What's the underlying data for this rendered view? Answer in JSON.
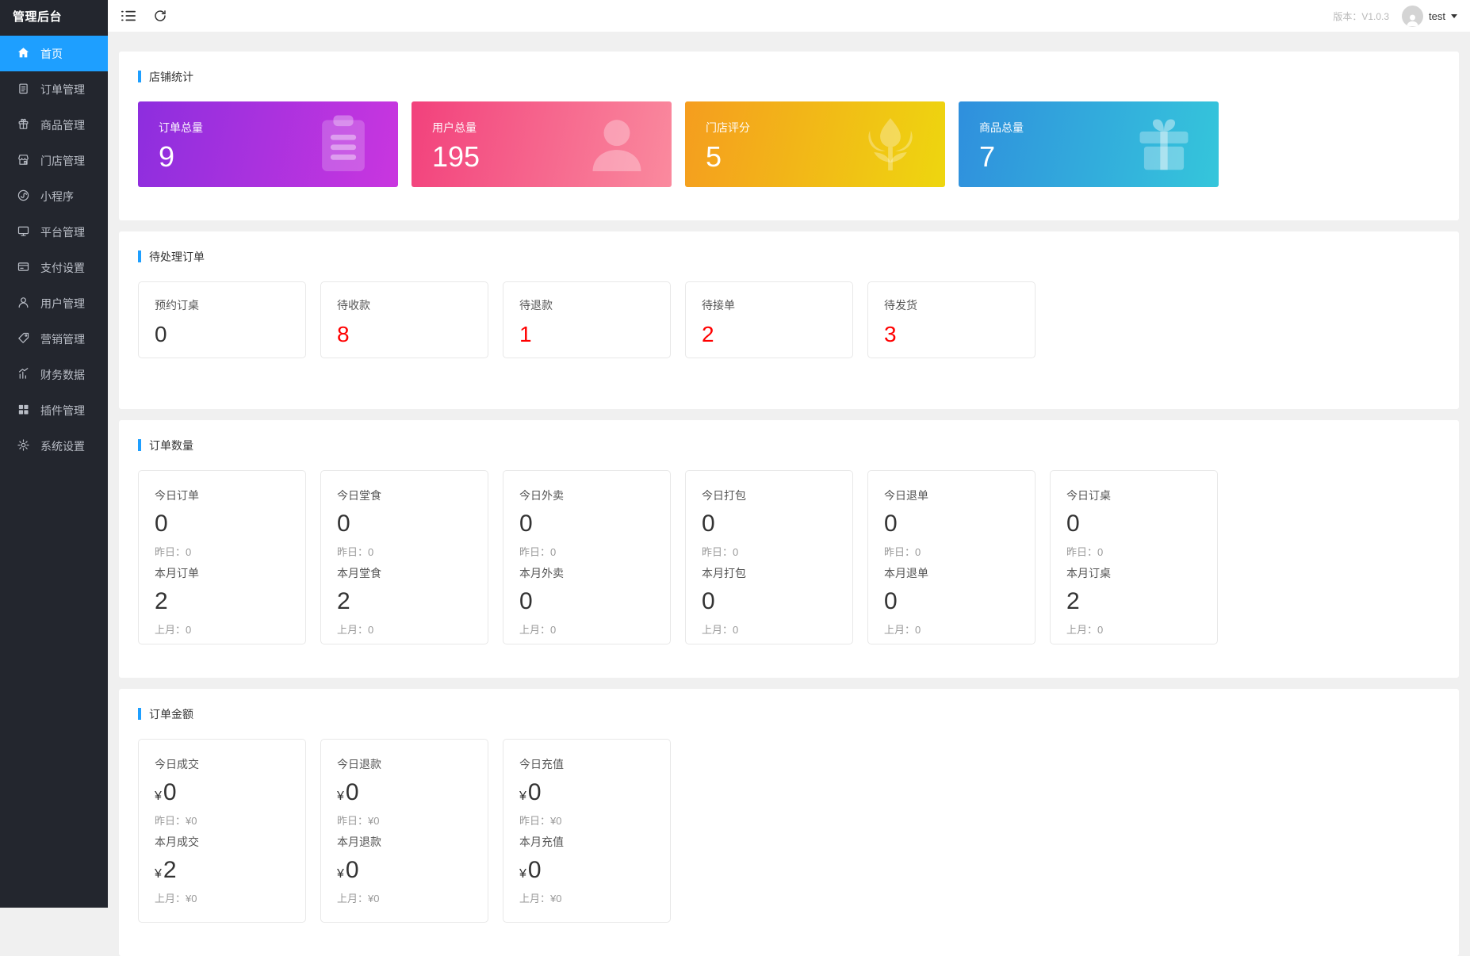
{
  "app": {
    "title": "管理后台"
  },
  "header": {
    "version_label": "版本：V1.0.3",
    "user": "test"
  },
  "sidebar": {
    "items": [
      {
        "id": "home",
        "label": "首页",
        "icon": "home-icon",
        "active": true
      },
      {
        "id": "orders",
        "label": "订单管理",
        "icon": "order-icon"
      },
      {
        "id": "products",
        "label": "商品管理",
        "icon": "goods-icon"
      },
      {
        "id": "stores",
        "label": "门店管理",
        "icon": "store-icon"
      },
      {
        "id": "miniprogram",
        "label": "小程序",
        "icon": "miniprogram-icon"
      },
      {
        "id": "platform",
        "label": "平台管理",
        "icon": "monitor-icon"
      },
      {
        "id": "payment",
        "label": "支付设置",
        "icon": "payment-icon"
      },
      {
        "id": "users",
        "label": "用户管理",
        "icon": "user-icon"
      },
      {
        "id": "marketing",
        "label": "营销管理",
        "icon": "tag-icon"
      },
      {
        "id": "finance",
        "label": "财务数据",
        "icon": "chart-icon"
      },
      {
        "id": "plugins",
        "label": "插件管理",
        "icon": "blocks-icon"
      },
      {
        "id": "settings",
        "label": "系统设置",
        "icon": "gear-icon"
      }
    ]
  },
  "sections": {
    "shop_stats": {
      "title": "店铺统计",
      "cards": [
        {
          "id": "total-orders",
          "label": "订单总量",
          "value": "9",
          "icon": "clipboard-icon",
          "gradient": [
            "#8d2ede",
            "#c936df"
          ]
        },
        {
          "id": "total-users",
          "label": "用户总量",
          "value": "195",
          "icon": "person-icon",
          "gradient": [
            "#f2417c",
            "#fa8a9e"
          ]
        },
        {
          "id": "store-rating",
          "label": "门店评分",
          "value": "5",
          "icon": "flower-icon",
          "gradient": [
            "#f59d1f",
            "#eed60f"
          ]
        },
        {
          "id": "total-products",
          "label": "商品总量",
          "value": "7",
          "icon": "gift-icon",
          "gradient": [
            "#2f8fdd",
            "#35c6db"
          ]
        }
      ]
    },
    "pending_orders": {
      "title": "待处理订单",
      "cards": [
        {
          "id": "reserved-tables",
          "label": "预约订桌",
          "value": "0",
          "value_color": "#333333"
        },
        {
          "id": "pending-payment",
          "label": "待收款",
          "value": "8",
          "value_color": "#ff0000"
        },
        {
          "id": "pending-refund",
          "label": "待退款",
          "value": "1",
          "value_color": "#ff0000"
        },
        {
          "id": "pending-accept",
          "label": "待接单",
          "value": "2",
          "value_color": "#ff0000"
        },
        {
          "id": "pending-ship",
          "label": "待发货",
          "value": "3",
          "value_color": "#ff0000"
        }
      ]
    },
    "order_counts": {
      "title": "订单数量",
      "cards": [
        {
          "id": "today-orders",
          "today_label": "今日订单",
          "today_value": "0",
          "yesterday": "昨日：0",
          "month_label": "本月订单",
          "month_value": "2",
          "last_month": "上月：0"
        },
        {
          "id": "today-dinein",
          "today_label": "今日堂食",
          "today_value": "0",
          "yesterday": "昨日：0",
          "month_label": "本月堂食",
          "month_value": "2",
          "last_month": "上月：0"
        },
        {
          "id": "today-takeout",
          "today_label": "今日外卖",
          "today_value": "0",
          "yesterday": "昨日：0",
          "month_label": "本月外卖",
          "month_value": "0",
          "last_month": "上月：0"
        },
        {
          "id": "today-packed",
          "today_label": "今日打包",
          "today_value": "0",
          "yesterday": "昨日：0",
          "month_label": "本月打包",
          "month_value": "0",
          "last_month": "上月：0"
        },
        {
          "id": "today-returns",
          "today_label": "今日退单",
          "today_value": "0",
          "yesterday": "昨日：0",
          "month_label": "本月退单",
          "month_value": "0",
          "last_month": "上月：0"
        },
        {
          "id": "today-tables",
          "today_label": "今日订桌",
          "today_value": "0",
          "yesterday": "昨日：0",
          "month_label": "本月订桌",
          "month_value": "2",
          "last_month": "上月：0"
        }
      ]
    },
    "order_amounts": {
      "title": "订单金额",
      "currency": "¥",
      "cards": [
        {
          "id": "today-sales",
          "today_label": "今日成交",
          "today_value": "0",
          "yesterday": "昨日：¥0",
          "month_label": "本月成交",
          "month_value": "2",
          "last_month": "上月：¥0"
        },
        {
          "id": "today-refunds",
          "today_label": "今日退款",
          "today_value": "0",
          "yesterday": "昨日：¥0",
          "month_label": "本月退款",
          "month_value": "0",
          "last_month": "上月：¥0"
        },
        {
          "id": "today-recharge",
          "today_label": "今日充值",
          "today_value": "0",
          "yesterday": "昨日：¥0",
          "month_label": "本月充值",
          "month_value": "0",
          "last_month": "上月：¥0"
        }
      ]
    }
  },
  "colors": {
    "accent": "#1e9fff",
    "danger": "#ff0000",
    "sidebar_bg": "#23262e",
    "page_bg": "#f0f0f0"
  }
}
